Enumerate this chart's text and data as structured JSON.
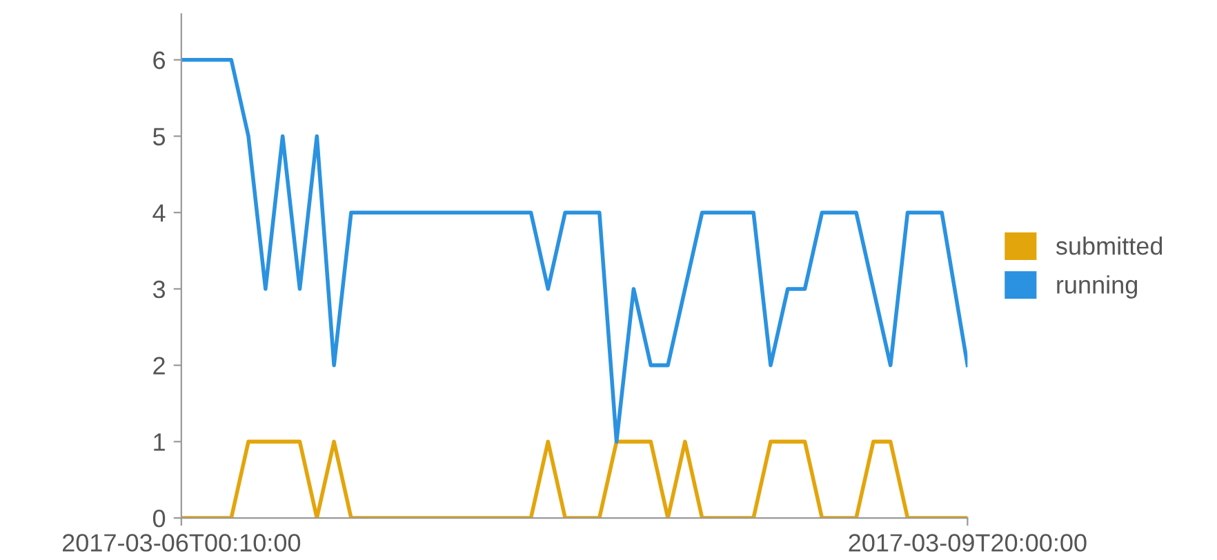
{
  "chart_data": {
    "type": "line",
    "xlim": [
      "2017-03-06T00:10",
      "2017-03-09T20:00"
    ],
    "xticks": [
      "2017-03-06T00:10:00",
      "2017-03-09T20:00:00"
    ],
    "ylim": [
      0,
      6.6
    ],
    "yticks": [
      0,
      1,
      2,
      3,
      4,
      5,
      6
    ],
    "grid": false,
    "legend": "right",
    "marker": "none",
    "line_style": "solid",
    "series": [
      {
        "name": "submitted",
        "color": "#e3a50c",
        "x": [
          "2017-03-06T00:10",
          "2017-03-06T06:00",
          "2017-03-06T08:00",
          "2017-03-06T14:00",
          "2017-03-06T16:00",
          "2017-03-06T18:00",
          "2017-03-06T20:00",
          "2017-03-07T17:00",
          "2017-03-07T19:00",
          "2017-03-07T21:00",
          "2017-03-08T01:00",
          "2017-03-08T03:00",
          "2017-03-08T07:00",
          "2017-03-08T09:00",
          "2017-03-08T11:00",
          "2017-03-08T13:00",
          "2017-03-08T19:00",
          "2017-03-08T21:00",
          "2017-03-09T01:00",
          "2017-03-09T03:00",
          "2017-03-09T07:00",
          "2017-03-09T09:00",
          "2017-03-09T11:00",
          "2017-03-09T13:00",
          "2017-03-09T20:00"
        ],
        "values": [
          0,
          0,
          1,
          1,
          0,
          1,
          0,
          0,
          1,
          0,
          0,
          1,
          1,
          0,
          1,
          0,
          0,
          1,
          1,
          0,
          0,
          1,
          1,
          0,
          0
        ]
      },
      {
        "name": "running",
        "color": "#2a92e0",
        "x": [
          "2017-03-06T00:10",
          "2017-03-06T06:00",
          "2017-03-06T08:00",
          "2017-03-06T10:00",
          "2017-03-06T12:00",
          "2017-03-06T14:00",
          "2017-03-06T16:00",
          "2017-03-06T18:00",
          "2017-03-06T20:00",
          "2017-03-07T17:00",
          "2017-03-07T19:00",
          "2017-03-07T21:00",
          "2017-03-08T01:00",
          "2017-03-08T03:00",
          "2017-03-08T05:00",
          "2017-03-08T07:00",
          "2017-03-08T09:00",
          "2017-03-08T13:00",
          "2017-03-08T19:00",
          "2017-03-08T21:00",
          "2017-03-08T23:00",
          "2017-03-09T01:00",
          "2017-03-09T03:00",
          "2017-03-09T07:00",
          "2017-03-09T11:00",
          "2017-03-09T13:00",
          "2017-03-09T17:00",
          "2017-03-09T20:00"
        ],
        "values": [
          6,
          6,
          5,
          3,
          5,
          3,
          5,
          2,
          4,
          4,
          3,
          4,
          4,
          1,
          3,
          2,
          2,
          4,
          4,
          2,
          3,
          3,
          4,
          4,
          2,
          4,
          4,
          2
        ]
      }
    ]
  }
}
